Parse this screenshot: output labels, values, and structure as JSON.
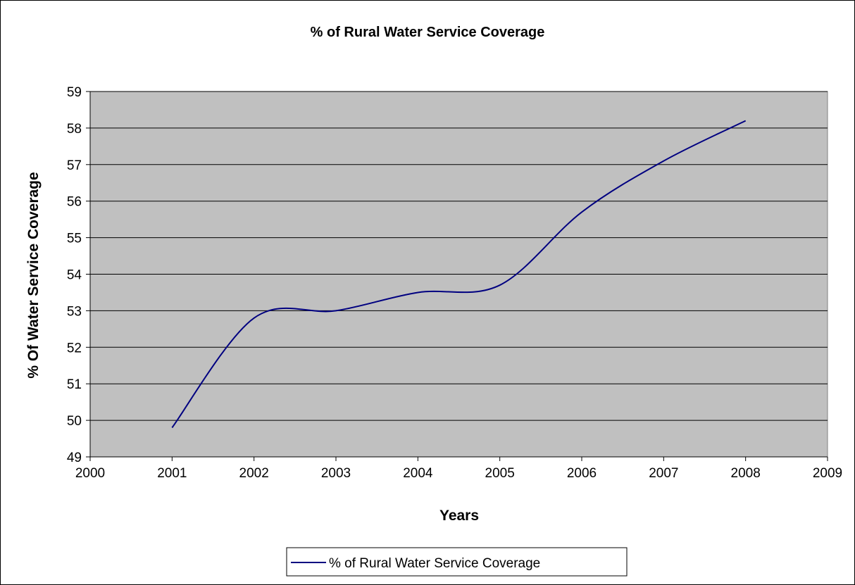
{
  "chart_data": {
    "type": "line",
    "title": "% of Rural  Water Service Coverage",
    "xlabel": "Years",
    "ylabel": "% Of Water Service Coverage",
    "xlim": [
      2000,
      2009
    ],
    "ylim": [
      49,
      59
    ],
    "x_ticks": [
      "2000",
      "2001",
      "2002",
      "2003",
      "2004",
      "2005",
      "2006",
      "2007",
      "2008",
      "2009"
    ],
    "y_ticks": [
      "49",
      "50",
      "51",
      "52",
      "53",
      "54",
      "55",
      "56",
      "57",
      "58",
      "59"
    ],
    "grid": "horizontal",
    "legend_position": "bottom",
    "plot_background": "#C0C0C0",
    "series": [
      {
        "name": "% of Rural  Water Service Coverage",
        "color": "#000080",
        "x": [
          2001,
          2002,
          2003,
          2004,
          2005,
          2006,
          2007,
          2008
        ],
        "y": [
          49.8,
          52.8,
          53.0,
          53.5,
          53.7,
          55.7,
          57.1,
          58.2
        ]
      }
    ]
  }
}
